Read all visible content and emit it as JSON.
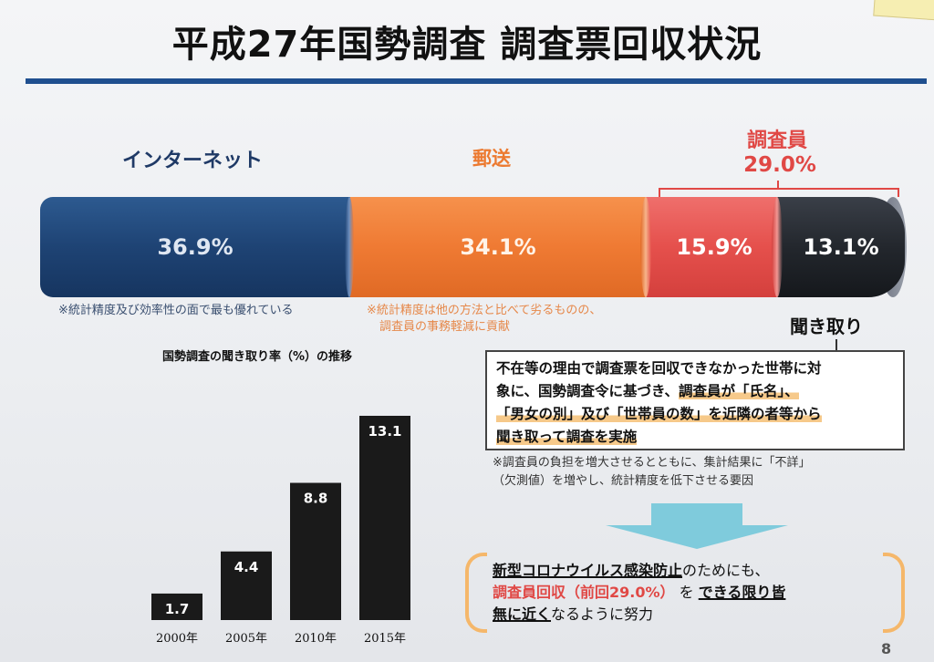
{
  "title": "平成27年国勢調査 調査票回収状況",
  "header": {
    "internet": "インターネット",
    "mail": "郵送",
    "staff": "調査員",
    "staff_pct": "29.0%",
    "listening": "聞き取り"
  },
  "segments": {
    "internet": "36.9%",
    "mail": "34.1%",
    "staff": "15.9%",
    "listening": "13.1%"
  },
  "notes": {
    "internet": "※統計精度及び効率性の面で最も優れている",
    "mail_line1": "※統計精度は他の方法と比べて劣るものの、",
    "mail_line2": "調査員の事務軽減に貢献",
    "staff_line1": "※調査員の負担を増大させるとともに、集計結果に「不詳」",
    "staff_line2": "（欠測値）を増やし、統計精度を低下させる要因"
  },
  "box": {
    "line1": "不在等の理由で調査票を回収できなかった世帯に対",
    "line2_a": "象に、国勢調査令に基づき、",
    "line2_b": "調査員が「氏名」、",
    "line3": "「男女の別」及び「世帯員の数」を近隣の者等から",
    "line4": "聞き取って調査を実施"
  },
  "conclusion": {
    "part1": "新型コロナウイルス感染防止",
    "part2": "のためにも、",
    "part3": "調査員回収（前回29.0%）",
    "part4": "を",
    "part5": "できる限り皆",
    "part6": "無に近く",
    "part7": "なるように努力"
  },
  "page_number": "8",
  "chart_data": {
    "type": "bar",
    "title": "国勢調査の聞き取り率（%）の推移",
    "categories": [
      "2000年",
      "2005年",
      "2010年",
      "2015年"
    ],
    "values": [
      1.7,
      4.4,
      8.8,
      13.1
    ],
    "value_labels": [
      "1.7",
      "4.4",
      "8.8",
      "13.1"
    ],
    "ylim": [
      0,
      13.1
    ],
    "xlabel": "",
    "ylabel": "",
    "bar_color": "#1a1a1a"
  }
}
